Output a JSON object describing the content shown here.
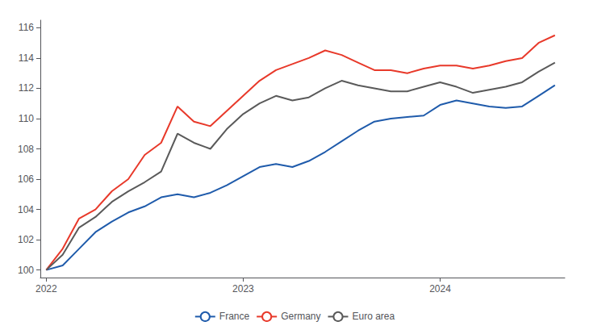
{
  "chart_data": {
    "type": "line",
    "x": [
      2022.0,
      2022.083322580645,
      2022.16664516129,
      2022.249967741935,
      2022.333290322581,
      2022.416612903226,
      2022.499935483871,
      2022.583258064516,
      2022.666580645161,
      2022.749903225806,
      2022.833225806452,
      2022.916548387097,
      2022.999870967742,
      2023.083193548387,
      2023.166516129032,
      2023.249838709677,
      2023.333161290323,
      2023.416483870968,
      2023.499806451613,
      2023.583129032258,
      2023.666451612903,
      2023.749774193548,
      2023.833096774194,
      2023.916419354839,
      2023.999741935484,
      2024.083064516129,
      2024.166387096774,
      2024.249709677419,
      2024.333032258065,
      2024.41635483871,
      2024.499677419355,
      2024.583
    ],
    "series": [
      {
        "name": "France",
        "color": "#1f5bab",
        "values": [
          100.0,
          100.3,
          101.4,
          102.5,
          103.2,
          103.8,
          104.2,
          104.8,
          105.0,
          104.8,
          105.1,
          105.6,
          106.2,
          106.8,
          107.0,
          106.8,
          107.2,
          107.8,
          108.5,
          109.2,
          109.8,
          110.0,
          110.1,
          110.2,
          110.9,
          111.2,
          111.0,
          110.8,
          110.7,
          110.8,
          111.5,
          112.2
        ]
      },
      {
        "name": "Germany",
        "color": "#e8392a",
        "values": [
          100.0,
          101.4,
          103.4,
          104.0,
          105.2,
          106.0,
          107.6,
          108.4,
          110.8,
          109.8,
          109.5,
          110.5,
          111.5,
          112.5,
          113.2,
          113.6,
          114.0,
          114.5,
          114.2,
          113.7,
          113.2,
          113.2,
          113.0,
          113.3,
          113.5,
          113.5,
          113.3,
          113.5,
          113.8,
          114.0,
          115.0,
          115.5
        ]
      },
      {
        "name": "Euro area",
        "color": "#5a5a5a",
        "values": [
          100.0,
          101.0,
          102.8,
          103.5,
          104.5,
          105.2,
          105.8,
          106.5,
          109.0,
          108.4,
          108.0,
          109.3,
          110.3,
          111.0,
          111.5,
          111.2,
          111.4,
          112.0,
          112.5,
          112.2,
          112.0,
          111.8,
          111.8,
          112.1,
          112.4,
          112.1,
          111.7,
          111.9,
          112.1,
          112.4,
          113.1,
          113.7
        ]
      }
    ],
    "xlim": [
      2021.97,
      2024.633
    ],
    "xticks": [
      2022,
      2023,
      2024
    ],
    "ylim": [
      99.5,
      116.5
    ],
    "yticks": [
      100,
      102,
      104,
      106,
      108,
      110,
      112,
      114,
      116
    ],
    "grid": false,
    "legend": "bottom"
  }
}
